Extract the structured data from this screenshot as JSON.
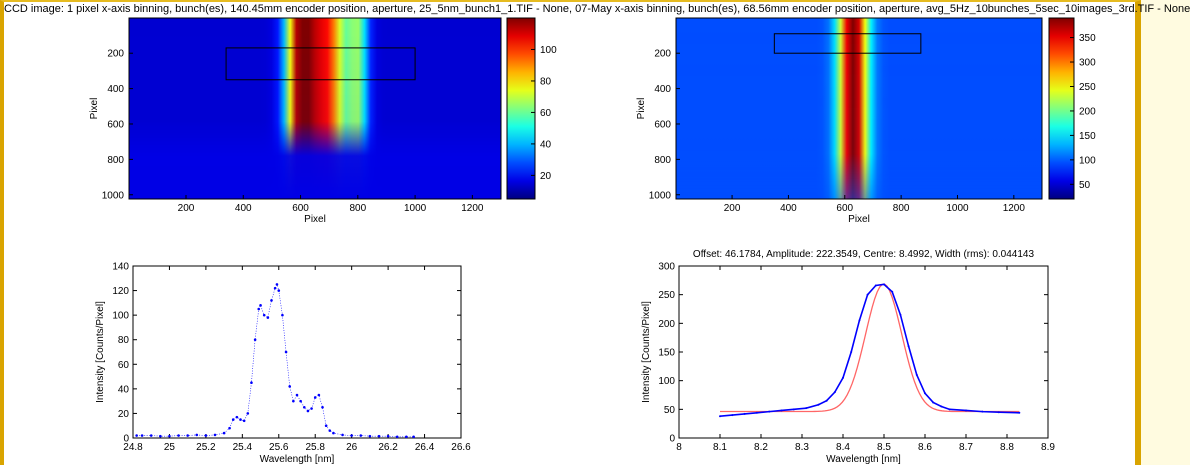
{
  "window": {
    "header_text": "CCD image: 1 pixel x-axis binning, bunch(es), 140.45mm encoder position, aperture, 25_5nm_bunch1_1.TIF - None, 07-May x-axis binning, bunch(es), 68.56mm encoder position, aperture, avg_5Hz_10bunches_5sec_10images_3rd.TIF - None"
  },
  "colors": {
    "frame": "#d9a400",
    "page_background": "#fffbe0",
    "data_points": "#0000ff",
    "fit_line": "#ff6666"
  },
  "chart_data": [
    {
      "type": "heatmap",
      "id": "ccd-image-left",
      "xlabel": "Pixel",
      "ylabel": "Pixel",
      "xlim": [
        1,
        1300
      ],
      "ylim": [
        1,
        1024
      ],
      "x_ticks": [
        200,
        400,
        600,
        800,
        1000,
        1200
      ],
      "y_ticks": [
        200,
        400,
        600,
        800,
        1000
      ],
      "colorbar": {
        "min": 5,
        "max": 120,
        "ticks": [
          20,
          40,
          60,
          80,
          100
        ]
      },
      "roi_box": {
        "x": [
          340,
          1000
        ],
        "y": [
          170,
          350
        ]
      },
      "profile": {
        "lines_x": [
          600,
          690,
          800
        ],
        "line_width_x": [
          35,
          50,
          25
        ],
        "line_amplitude": [
          1.0,
          0.9,
          0.45
        ],
        "y_extent": [
          0,
          780
        ]
      }
    },
    {
      "type": "heatmap",
      "id": "ccd-image-right",
      "xlabel": "Pixel",
      "ylabel": "Pixel",
      "xlim": [
        1,
        1300
      ],
      "ylim": [
        1,
        1024
      ],
      "x_ticks": [
        200,
        400,
        600,
        800,
        1000,
        1200
      ],
      "y_ticks": [
        200,
        400,
        600,
        800,
        1000
      ],
      "colorbar": {
        "min": 20,
        "max": 390,
        "ticks": [
          50,
          100,
          150,
          200,
          250,
          300,
          350
        ]
      },
      "roi_box": {
        "x": [
          350,
          870
        ],
        "y": [
          90,
          200
        ]
      },
      "profile": {
        "lines_x": [
          630
        ],
        "line_width_x": [
          35
        ],
        "line_amplitude": [
          1.0
        ],
        "y_extent": [
          0,
          1024
        ]
      }
    },
    {
      "type": "scatter",
      "id": "spectrum-left",
      "title": "",
      "xlabel": "Wavelength [nm]",
      "ylabel": "Intensity [Counts/Pixel]",
      "xlim": [
        24.8,
        26.6
      ],
      "ylim": [
        0,
        140
      ],
      "x_ticks": [
        24.8,
        25,
        25.2,
        25.4,
        25.6,
        25.8,
        26,
        26.2,
        26.4,
        26.6
      ],
      "y_ticks": [
        0,
        20,
        40,
        60,
        80,
        100,
        120,
        140
      ],
      "series": [
        {
          "x": [
            24.82,
            24.85,
            24.9,
            24.95,
            25.0,
            25.05,
            25.1,
            25.15,
            25.2,
            25.25,
            25.3,
            25.33,
            25.35,
            25.37,
            25.39,
            25.41,
            25.43,
            25.45,
            25.47,
            25.49,
            25.5,
            25.52,
            25.54,
            25.56,
            25.58,
            25.59,
            25.6,
            25.62,
            25.64,
            25.66,
            25.68,
            25.7,
            25.72,
            25.74,
            25.76,
            25.78,
            25.8,
            25.82,
            25.84,
            25.86,
            25.88,
            25.9,
            25.95,
            26.0,
            26.05,
            26.1,
            26.15,
            26.2,
            26.25,
            26.3,
            26.34
          ],
          "y": [
            2,
            2,
            2,
            1.5,
            1.5,
            2,
            2,
            2.5,
            2,
            2.5,
            4,
            8,
            15,
            17,
            15,
            14,
            20,
            45,
            80,
            105,
            108,
            100,
            98,
            112,
            122,
            125,
            120,
            100,
            70,
            42,
            30,
            35,
            30,
            25,
            22,
            24,
            33,
            35,
            25,
            10,
            6,
            4,
            2.5,
            2,
            2,
            1.5,
            1.5,
            1.5,
            1,
            1,
            1
          ]
        }
      ]
    },
    {
      "type": "line",
      "id": "spectrum-right",
      "title": "Offset: 46.1784, Amplitude: 222.3549, Centre: 8.4992, Width (rms): 0.044143",
      "xlabel": "Wavelength [nm]",
      "ylabel": "Intensity [Counts/Pixel]",
      "xlim": [
        8,
        8.9
      ],
      "ylim": [
        0,
        300
      ],
      "x_ticks": [
        8,
        8.1,
        8.2,
        8.3,
        8.4,
        8.5,
        8.6,
        8.7,
        8.8,
        8.9
      ],
      "y_ticks": [
        0,
        50,
        100,
        150,
        200,
        250,
        300
      ],
      "fit": {
        "offset": 46.1784,
        "amplitude": 222.3549,
        "centre": 8.4992,
        "width_rms": 0.044143,
        "x_range": [
          8.1,
          8.83
        ]
      },
      "series": [
        {
          "x": [
            8.1,
            8.13,
            8.16,
            8.19,
            8.22,
            8.25,
            8.28,
            8.31,
            8.34,
            8.36,
            8.38,
            8.4,
            8.42,
            8.44,
            8.46,
            8.48,
            8.5,
            8.52,
            8.54,
            8.56,
            8.58,
            8.6,
            8.62,
            8.64,
            8.66,
            8.7,
            8.74,
            8.78,
            8.83
          ],
          "y": [
            38,
            40,
            42,
            44,
            46,
            48,
            50,
            52,
            58,
            65,
            80,
            105,
            150,
            205,
            250,
            266,
            268,
            255,
            215,
            160,
            110,
            78,
            62,
            55,
            50,
            48,
            46,
            45,
            44
          ]
        }
      ]
    }
  ]
}
